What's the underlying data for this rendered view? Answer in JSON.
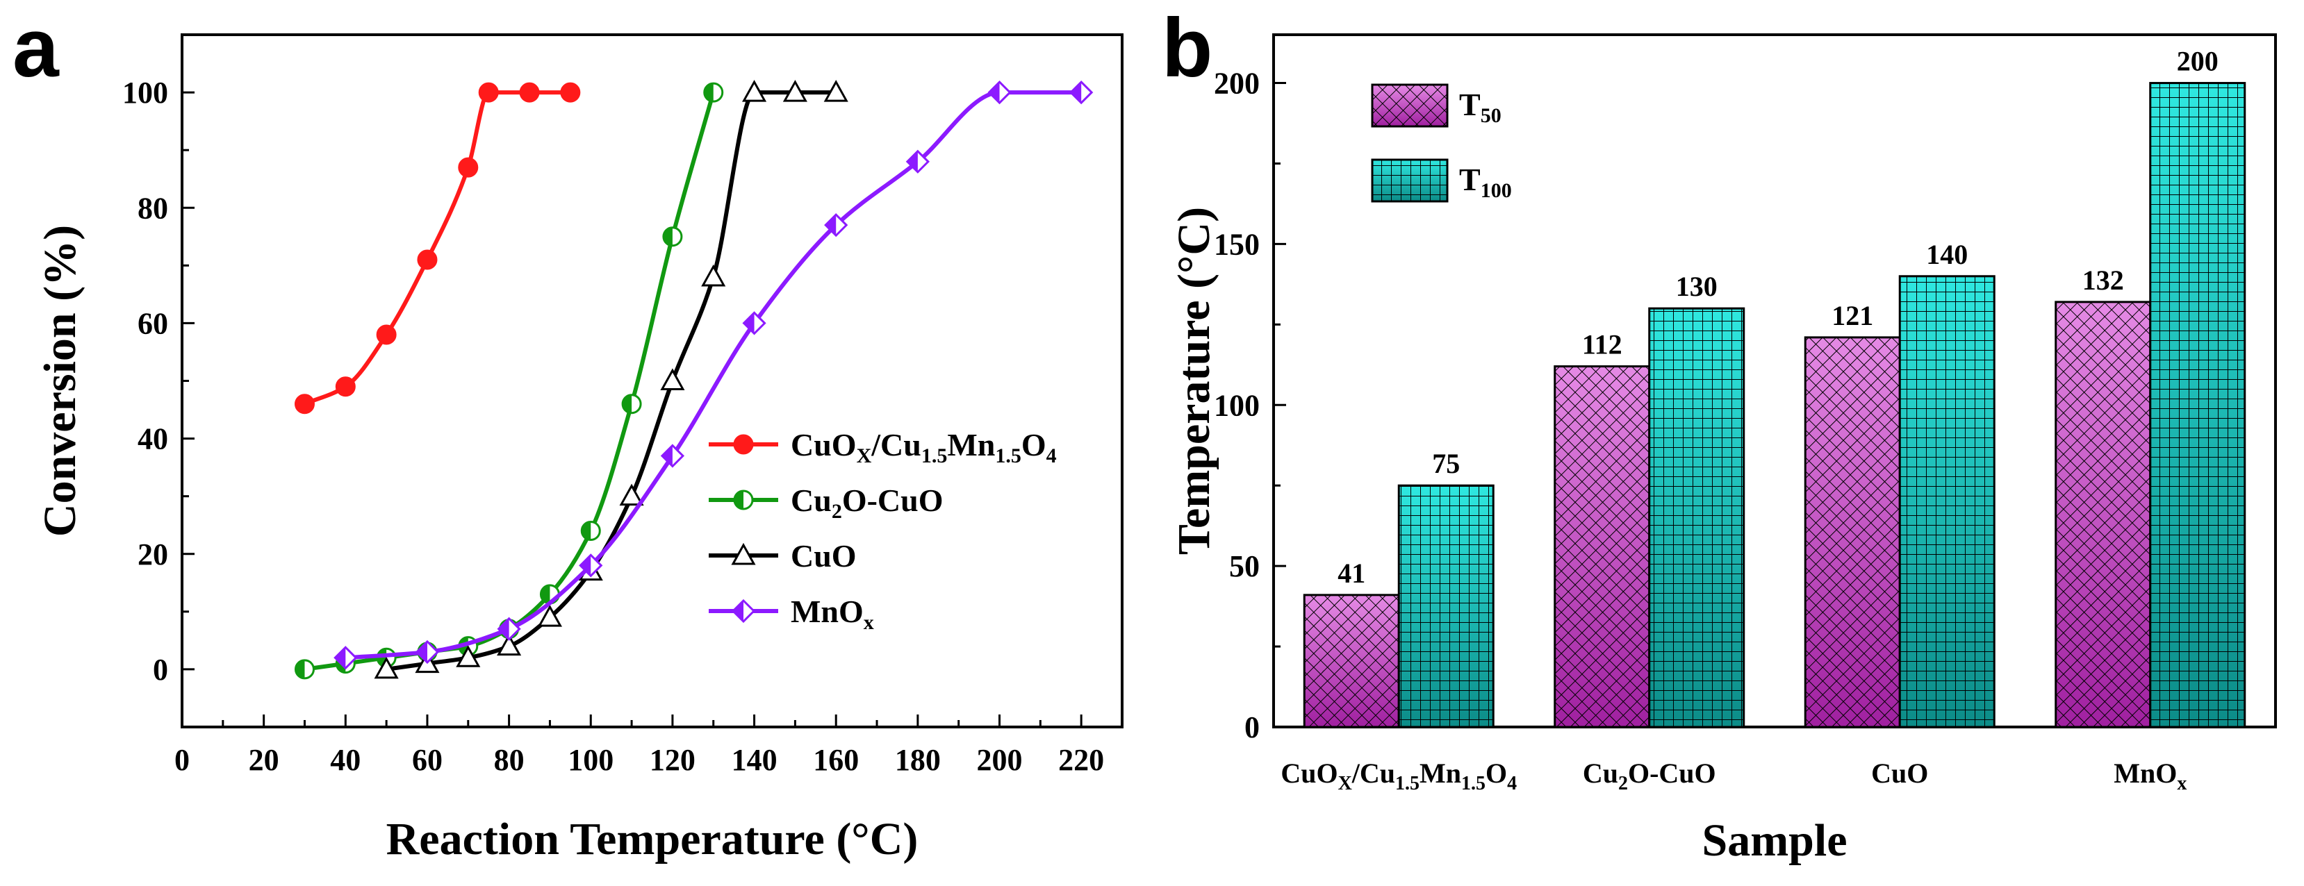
{
  "panels": {
    "a": {
      "letter": "a"
    },
    "b": {
      "letter": "b"
    }
  },
  "chart_data": [
    {
      "type": "line",
      "panel": "a",
      "xlabel": "Reaction Temperature (°C)",
      "ylabel": "Conversion (%)",
      "xlim": [
        0,
        230
      ],
      "ylim": [
        -10,
        110
      ],
      "xticks": [
        0,
        20,
        40,
        60,
        80,
        100,
        120,
        140,
        160,
        180,
        200,
        220
      ],
      "yticks": [
        0,
        20,
        40,
        60,
        80,
        100
      ],
      "legend_position": "center-right",
      "series": [
        {
          "name": "CuOX/Cu1.5Mn1.5O4",
          "legend_parts": [
            [
              "CuO",
              ""
            ],
            [
              "X",
              "sub"
            ],
            [
              "/Cu",
              ""
            ],
            [
              "1.5",
              "sub"
            ],
            [
              "Mn",
              ""
            ],
            [
              "1.5",
              "sub"
            ],
            [
              "O",
              ""
            ],
            [
              "4",
              "sub"
            ]
          ],
          "color": "#ff1a1a",
          "marker": "circle-filled",
          "x": [
            30,
            40,
            50,
            60,
            70,
            75,
            85,
            95
          ],
          "y": [
            46,
            49,
            58,
            71,
            87,
            100,
            100,
            100
          ]
        },
        {
          "name": "Cu2O-CuO",
          "legend_parts": [
            [
              "Cu",
              ""
            ],
            [
              "2",
              "sub"
            ],
            [
              "O-CuO",
              ""
            ]
          ],
          "color": "#119911",
          "marker": "circle-half",
          "x": [
            30,
            40,
            50,
            60,
            70,
            80,
            90,
            100,
            110,
            120,
            130
          ],
          "y": [
            0,
            1,
            2,
            3,
            4,
            7,
            13,
            24,
            46,
            75,
            100
          ]
        },
        {
          "name": "CuO",
          "legend_parts": [
            [
              "CuO",
              ""
            ]
          ],
          "color": "#000000",
          "marker": "triangle",
          "x": [
            50,
            60,
            70,
            80,
            90,
            100,
            110,
            120,
            130,
            140,
            150,
            160
          ],
          "y": [
            0,
            1,
            2,
            4,
            9,
            17,
            30,
            50,
            68,
            100,
            100,
            100
          ]
        },
        {
          "name": "MnOx",
          "legend_parts": [
            [
              "MnO",
              ""
            ],
            [
              "x",
              "sub"
            ]
          ],
          "color": "#8c1aff",
          "marker": "diamond-half",
          "x": [
            40,
            60,
            80,
            100,
            120,
            140,
            160,
            180,
            200,
            220
          ],
          "y": [
            2,
            3,
            7,
            18,
            37,
            60,
            77,
            88,
            100,
            100
          ]
        }
      ]
    },
    {
      "type": "bar",
      "panel": "b",
      "xlabel": "Sample",
      "ylabel": "Temperature (°C)",
      "ylim": [
        0,
        215
      ],
      "yticks": [
        0,
        50,
        100,
        150,
        200
      ],
      "legend_position": "top-left",
      "categories": [
        "CuOX/Cu1.5Mn1.5O4",
        "Cu2O-CuO",
        "CuO",
        "MnOx"
      ],
      "category_parts": [
        [
          [
            "CuO",
            ""
          ],
          [
            "X",
            "sub"
          ],
          [
            "/Cu",
            ""
          ],
          [
            "1.5",
            "sub"
          ],
          [
            "Mn",
            ""
          ],
          [
            "1.5",
            "sub"
          ],
          [
            "O",
            ""
          ],
          [
            "4",
            "sub"
          ]
        ],
        [
          [
            "Cu",
            ""
          ],
          [
            "2",
            "sub"
          ],
          [
            "O-CuO",
            ""
          ]
        ],
        [
          [
            "CuO",
            ""
          ]
        ],
        [
          [
            "MnO",
            ""
          ],
          [
            "x",
            "sub"
          ]
        ]
      ],
      "series": [
        {
          "name": "T50",
          "legend_parts": [
            [
              "T",
              ""
            ],
            [
              "50",
              "sub"
            ]
          ],
          "color": "#c040c0",
          "values": [
            41,
            112,
            121,
            132
          ]
        },
        {
          "name": "T100",
          "legend_parts": [
            [
              "T",
              ""
            ],
            [
              "100",
              "sub"
            ]
          ],
          "color": "#18c8c0",
          "values": [
            75,
            130,
            140,
            200
          ]
        }
      ]
    }
  ]
}
